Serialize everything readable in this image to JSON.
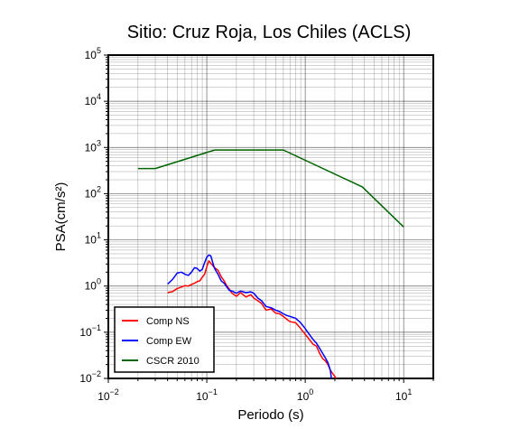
{
  "chart_data": {
    "type": "line",
    "title": "Sitio: Cruz Roja, Los Chiles (ACLS)",
    "xlabel": "Periodo (s)",
    "ylabel": "PSA(cm/s²)",
    "xscale": "log",
    "yscale": "log",
    "xlim": [
      0.01,
      20
    ],
    "ylim": [
      0.01,
      100000
    ],
    "grid": true,
    "legend_position": "bottom-left",
    "x_ticks": [
      {
        "value": 0.01,
        "base": "10",
        "exp": "−2"
      },
      {
        "value": 0.1,
        "base": "10",
        "exp": "−1"
      },
      {
        "value": 1,
        "base": "10",
        "exp": "0"
      },
      {
        "value": 10,
        "base": "10",
        "exp": "1"
      }
    ],
    "y_ticks": [
      {
        "value": 0.01,
        "base": "10",
        "exp": "−2"
      },
      {
        "value": 0.1,
        "base": "10",
        "exp": "−1"
      },
      {
        "value": 1,
        "base": "10",
        "exp": "0"
      },
      {
        "value": 10,
        "base": "10",
        "exp": "1"
      },
      {
        "value": 100,
        "base": "10",
        "exp": "2"
      },
      {
        "value": 1000,
        "base": "10",
        "exp": "3"
      },
      {
        "value": 10000,
        "base": "10",
        "exp": "4"
      },
      {
        "value": 100000,
        "base": "10",
        "exp": "5"
      }
    ],
    "series": [
      {
        "name": "Comp NS",
        "color": "#ff0000",
        "points": [
          [
            0.04,
            0.72
          ],
          [
            0.045,
            0.76
          ],
          [
            0.05,
            0.88
          ],
          [
            0.055,
            0.95
          ],
          [
            0.06,
            1.02
          ],
          [
            0.065,
            1.0
          ],
          [
            0.07,
            1.08
          ],
          [
            0.075,
            1.15
          ],
          [
            0.08,
            1.25
          ],
          [
            0.085,
            1.3
          ],
          [
            0.09,
            1.55
          ],
          [
            0.095,
            1.8
          ],
          [
            0.1,
            2.6
          ],
          [
            0.105,
            3.5
          ],
          [
            0.11,
            3.1
          ],
          [
            0.12,
            2.5
          ],
          [
            0.13,
            2.2
          ],
          [
            0.14,
            1.6
          ],
          [
            0.15,
            1.3
          ],
          [
            0.16,
            1.0
          ],
          [
            0.17,
            0.85
          ],
          [
            0.18,
            0.7
          ],
          [
            0.2,
            0.6
          ],
          [
            0.22,
            0.72
          ],
          [
            0.25,
            0.58
          ],
          [
            0.28,
            0.65
          ],
          [
            0.3,
            0.55
          ],
          [
            0.33,
            0.48
          ],
          [
            0.36,
            0.42
          ],
          [
            0.4,
            0.3
          ],
          [
            0.45,
            0.32
          ],
          [
            0.5,
            0.26
          ],
          [
            0.55,
            0.25
          ],
          [
            0.6,
            0.22
          ],
          [
            0.65,
            0.19
          ],
          [
            0.7,
            0.17
          ],
          [
            0.8,
            0.16
          ],
          [
            0.9,
            0.12
          ],
          [
            1.0,
            0.09
          ],
          [
            1.1,
            0.07
          ],
          [
            1.2,
            0.055
          ],
          [
            1.3,
            0.05
          ],
          [
            1.4,
            0.035
          ],
          [
            1.5,
            0.027
          ],
          [
            1.6,
            0.024
          ],
          [
            1.7,
            0.02
          ],
          [
            1.8,
            0.015
          ],
          [
            2.0,
            0.011
          ],
          [
            2.1,
            0.0095
          ]
        ]
      },
      {
        "name": "Comp EW",
        "color": "#0000ff",
        "points": [
          [
            0.04,
            1.1
          ],
          [
            0.045,
            1.4
          ],
          [
            0.05,
            1.9
          ],
          [
            0.055,
            2.0
          ],
          [
            0.06,
            1.8
          ],
          [
            0.065,
            1.7
          ],
          [
            0.07,
            2.0
          ],
          [
            0.075,
            2.5
          ],
          [
            0.08,
            2.4
          ],
          [
            0.085,
            2.1
          ],
          [
            0.09,
            2.3
          ],
          [
            0.095,
            3.2
          ],
          [
            0.1,
            4.2
          ],
          [
            0.105,
            4.7
          ],
          [
            0.11,
            4.5
          ],
          [
            0.115,
            3.2
          ],
          [
            0.12,
            2.4
          ],
          [
            0.13,
            1.8
          ],
          [
            0.14,
            1.3
          ],
          [
            0.15,
            1.15
          ],
          [
            0.16,
            0.95
          ],
          [
            0.17,
            0.8
          ],
          [
            0.18,
            0.78
          ],
          [
            0.2,
            0.7
          ],
          [
            0.22,
            0.78
          ],
          [
            0.25,
            0.72
          ],
          [
            0.28,
            0.75
          ],
          [
            0.3,
            0.7
          ],
          [
            0.33,
            0.55
          ],
          [
            0.36,
            0.48
          ],
          [
            0.4,
            0.36
          ],
          [
            0.45,
            0.34
          ],
          [
            0.5,
            0.3
          ],
          [
            0.55,
            0.28
          ],
          [
            0.6,
            0.25
          ],
          [
            0.65,
            0.23
          ],
          [
            0.7,
            0.22
          ],
          [
            0.8,
            0.2
          ],
          [
            0.9,
            0.16
          ],
          [
            1.0,
            0.12
          ],
          [
            1.1,
            0.09
          ],
          [
            1.2,
            0.07
          ],
          [
            1.3,
            0.058
          ],
          [
            1.4,
            0.045
          ],
          [
            1.5,
            0.035
          ],
          [
            1.6,
            0.028
          ],
          [
            1.7,
            0.022
          ],
          [
            1.8,
            0.015
          ],
          [
            1.85,
            0.0095
          ]
        ]
      },
      {
        "name": "CSCR 2010",
        "color": "#006400",
        "points": [
          [
            0.02,
            350
          ],
          [
            0.03,
            350
          ],
          [
            0.12,
            880
          ],
          [
            0.6,
            880
          ],
          [
            3.8,
            140
          ],
          [
            10,
            19
          ]
        ]
      }
    ]
  }
}
